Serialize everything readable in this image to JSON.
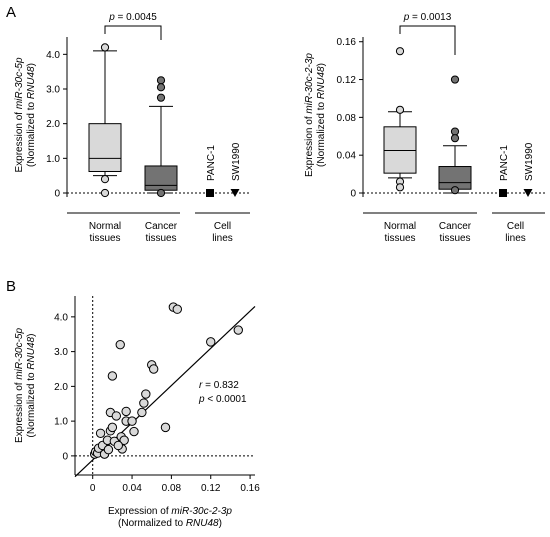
{
  "panel_labels": {
    "a": "A",
    "b": "B"
  },
  "chart_data": [
    {
      "type": "box",
      "panel": "A-left",
      "ylabel_lines": [
        {
          "parts": [
            "Expression of ",
            "miR-30c-5p"
          ]
        },
        {
          "parts": [
            "(Normalized to ",
            "RNU48",
            ")"
          ]
        }
      ],
      "ylim": [
        0,
        4.5
      ],
      "yticks": [
        0,
        1.0,
        2.0,
        3.0,
        4.0
      ],
      "ytick_labels": [
        "0",
        "1.0",
        "2.0",
        "3.0",
        "4.0"
      ],
      "groups": [
        {
          "label_lines": [
            "Normal",
            "tissues"
          ],
          "whisker_low": 0.5,
          "q1": 0.62,
          "median": 1.0,
          "q3": 2.0,
          "whisker_high": 4.1,
          "outliers": [
            4.2,
            0.4,
            0.0
          ],
          "fill": "#d9d9d9"
        },
        {
          "label_lines": [
            "Cancer",
            "tissues"
          ],
          "whisker_low": 0.0,
          "q1": 0.08,
          "median": 0.22,
          "q3": 0.78,
          "whisker_high": 2.5,
          "outliers": [
            3.25,
            3.05,
            2.75,
            0.0
          ],
          "fill": "#737373"
        }
      ],
      "cell_lines": {
        "label_lines": [
          "Cell",
          "lines"
        ],
        "points": [
          {
            "name": "PANC-1",
            "value": 0.0,
            "marker": "square"
          },
          {
            "name": "SW1990",
            "value": 0.0,
            "marker": "triangle-down"
          }
        ]
      },
      "significance": {
        "text": "p = 0.0045",
        "p_symbol": "p",
        "p_rest": " = 0.0045"
      }
    },
    {
      "type": "box",
      "panel": "A-right",
      "ylabel_lines": [
        {
          "parts": [
            "Expression of ",
            "miR-30c-2-3p"
          ]
        },
        {
          "parts": [
            "(Normalized to ",
            "RNU48",
            ")"
          ]
        }
      ],
      "ylim": [
        0,
        0.165
      ],
      "yticks": [
        0,
        0.04,
        0.08,
        0.12,
        0.16
      ],
      "ytick_labels": [
        "0",
        "0.04",
        "0.08",
        "0.12",
        "0.16"
      ],
      "groups": [
        {
          "label_lines": [
            "Normal",
            "tissues"
          ],
          "whisker_low": 0.016,
          "q1": 0.021,
          "median": 0.045,
          "q3": 0.07,
          "whisker_high": 0.086,
          "outliers": [
            0.15,
            0.088,
            0.012,
            0.006
          ],
          "fill": "#d9d9d9"
        },
        {
          "label_lines": [
            "Cancer",
            "tissues"
          ],
          "whisker_low": 0.0,
          "q1": 0.004,
          "median": 0.011,
          "q3": 0.028,
          "whisker_high": 0.05,
          "outliers": [
            0.12,
            0.065,
            0.058,
            0.003
          ],
          "fill": "#737373"
        }
      ],
      "cell_lines": {
        "label_lines": [
          "Cell",
          "lines"
        ],
        "points": [
          {
            "name": "PANC-1",
            "value": 0.0,
            "marker": "square"
          },
          {
            "name": "SW1990",
            "value": 0.0,
            "marker": "triangle-down"
          }
        ]
      },
      "significance": {
        "text": "p = 0.0013",
        "p_symbol": "p",
        "p_rest": " = 0.0013"
      }
    },
    {
      "type": "scatter",
      "panel": "B",
      "xlabel_lines": [
        {
          "parts": [
            "Expression of ",
            "miR-30c-2-3p"
          ]
        },
        {
          "parts": [
            "(Normalized to ",
            "RNU48",
            ")"
          ]
        }
      ],
      "ylabel_lines": [
        {
          "parts": [
            "Expression of ",
            "miR-30c-5p"
          ]
        },
        {
          "parts": [
            "(Normalized to ",
            "RNU48",
            ")"
          ]
        }
      ],
      "xlim": [
        -0.018,
        0.165
      ],
      "ylim": [
        -0.55,
        4.6
      ],
      "xticks": [
        0,
        0.04,
        0.08,
        0.12,
        0.16
      ],
      "xtick_labels": [
        "0",
        "0.04",
        "0.08",
        "0.12",
        "0.16"
      ],
      "yticks": [
        0,
        1.0,
        2.0,
        3.0,
        4.0
      ],
      "ytick_labels": [
        "0",
        "1.0",
        "2.0",
        "3.0",
        "4.0"
      ],
      "regression": {
        "x0": -0.018,
        "y0": -0.6,
        "x1": 0.165,
        "y1": 4.3
      },
      "stats": {
        "r": "r = 0.832",
        "p": "p < 0.0001"
      },
      "points": [
        [
          0.002,
          0.05
        ],
        [
          0.003,
          0.12
        ],
        [
          0.005,
          0.08
        ],
        [
          0.006,
          0.22
        ],
        [
          0.008,
          0.65
        ],
        [
          0.01,
          0.3
        ],
        [
          0.012,
          0.05
        ],
        [
          0.015,
          0.45
        ],
        [
          0.016,
          0.18
        ],
        [
          0.018,
          0.72
        ],
        [
          0.02,
          0.82
        ],
        [
          0.022,
          0.42
        ],
        [
          0.018,
          1.25
        ],
        [
          0.02,
          2.3
        ],
        [
          0.024,
          1.15
        ],
        [
          0.028,
          3.2
        ],
        [
          0.029,
          0.55
        ],
        [
          0.03,
          0.2
        ],
        [
          0.032,
          0.45
        ],
        [
          0.034,
          1.0
        ],
        [
          0.034,
          1.28
        ],
        [
          0.04,
          1.0
        ],
        [
          0.05,
          1.25
        ],
        [
          0.052,
          1.52
        ],
        [
          0.054,
          1.78
        ],
        [
          0.06,
          2.62
        ],
        [
          0.062,
          2.5
        ],
        [
          0.074,
          0.82
        ],
        [
          0.082,
          4.28
        ],
        [
          0.086,
          4.22
        ],
        [
          0.12,
          3.28
        ],
        [
          0.148,
          3.62
        ],
        [
          0.042,
          0.7
        ],
        [
          0.026,
          0.3
        ]
      ]
    }
  ]
}
